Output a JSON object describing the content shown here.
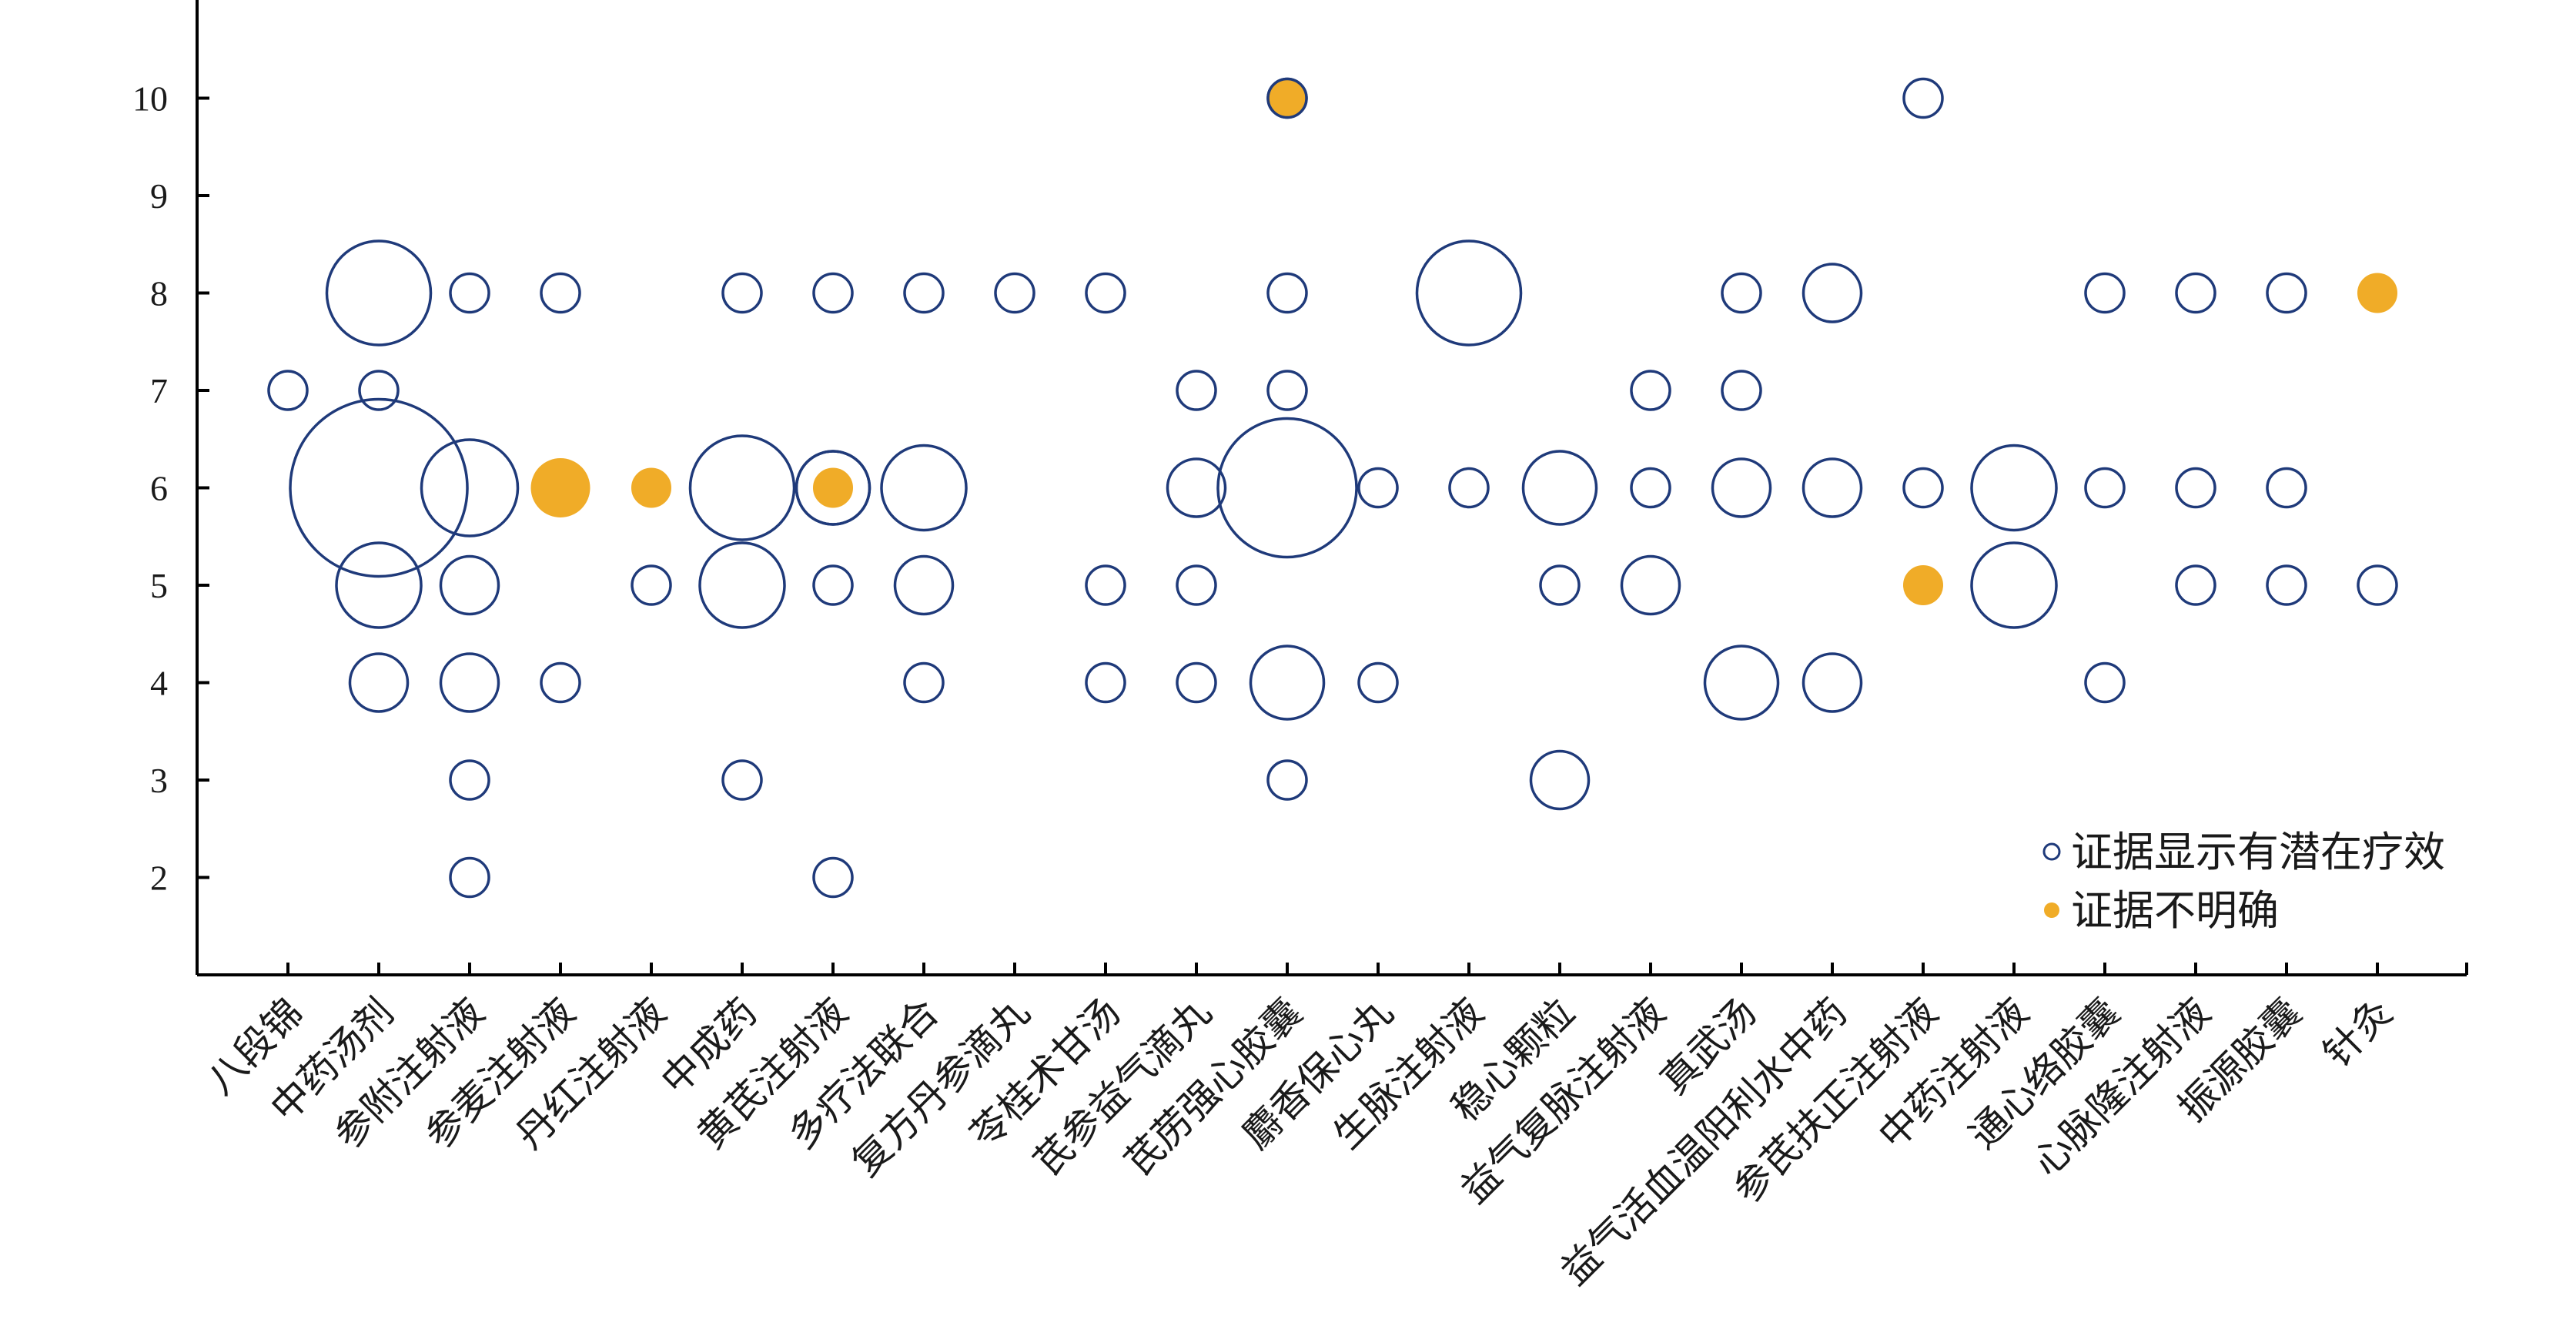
{
  "chart_data": {
    "type": "scatter",
    "title": "",
    "xlabel": "",
    "ylabel": "",
    "ylim": [
      1,
      11
    ],
    "yticks": [
      2,
      3,
      4,
      5,
      6,
      7,
      8,
      9,
      10
    ],
    "grid": false,
    "legend_position": "bottom-right",
    "categories": [
      "八段锦",
      "中药汤剂",
      "参附注射液",
      "参麦注射液",
      "丹红注射液",
      "中成药",
      "黄芪注射液",
      "多疗法联合",
      "复方丹参滴丸",
      "苓桂术甘汤",
      "芪参益气滴丸",
      "芪苈强心胶囊",
      "麝香保心丸",
      "生脉注射液",
      "稳心颗粒",
      "益气复脉注射液",
      "真武汤",
      "益气活血温阳利水中药",
      "参芪扶正注射液",
      "中药注射液",
      "通心络胶囊",
      "心脉隆注射液",
      "振源胶囊",
      "针灸"
    ],
    "series": [
      {
        "name": "证据显示有潜在疗效",
        "color": "#1f3a7a",
        "points": [
          {
            "x": "八段锦",
            "y": 7,
            "size": 1
          },
          {
            "x": "中药汤剂",
            "y": 8,
            "size": 2.7
          },
          {
            "x": "中药汤剂",
            "y": 7,
            "size": 1
          },
          {
            "x": "中药汤剂",
            "y": 6,
            "size": 4.6
          },
          {
            "x": "中药汤剂",
            "y": 5,
            "size": 2.2
          },
          {
            "x": "中药汤剂",
            "y": 4,
            "size": 1.5
          },
          {
            "x": "参附注射液",
            "y": 8,
            "size": 1
          },
          {
            "x": "参附注射液",
            "y": 6,
            "size": 2.5
          },
          {
            "x": "参附注射液",
            "y": 5,
            "size": 1.5
          },
          {
            "x": "参附注射液",
            "y": 4,
            "size": 1.5
          },
          {
            "x": "参附注射液",
            "y": 3,
            "size": 1
          },
          {
            "x": "参附注射液",
            "y": 2,
            "size": 1
          },
          {
            "x": "参麦注射液",
            "y": 8,
            "size": 1
          },
          {
            "x": "参麦注射液",
            "y": 4,
            "size": 1
          },
          {
            "x": "丹红注射液",
            "y": 5,
            "size": 1
          },
          {
            "x": "中成药",
            "y": 8,
            "size": 1
          },
          {
            "x": "中成药",
            "y": 6,
            "size": 2.7
          },
          {
            "x": "中成药",
            "y": 5,
            "size": 2.2
          },
          {
            "x": "中成药",
            "y": 3,
            "size": 1
          },
          {
            "x": "黄芪注射液",
            "y": 8,
            "size": 1
          },
          {
            "x": "黄芪注射液",
            "y": 6,
            "size": 1.9
          },
          {
            "x": "黄芪注射液",
            "y": 5,
            "size": 1
          },
          {
            "x": "黄芪注射液",
            "y": 2,
            "size": 1
          },
          {
            "x": "多疗法联合",
            "y": 8,
            "size": 1
          },
          {
            "x": "多疗法联合",
            "y": 6,
            "size": 2.2
          },
          {
            "x": "多疗法联合",
            "y": 5,
            "size": 1.5
          },
          {
            "x": "多疗法联合",
            "y": 4,
            "size": 1
          },
          {
            "x": "复方丹参滴丸",
            "y": 8,
            "size": 1
          },
          {
            "x": "苓桂术甘汤",
            "y": 8,
            "size": 1
          },
          {
            "x": "苓桂术甘汤",
            "y": 5,
            "size": 1
          },
          {
            "x": "苓桂术甘汤",
            "y": 4,
            "size": 1
          },
          {
            "x": "芪参益气滴丸",
            "y": 7,
            "size": 1
          },
          {
            "x": "芪参益气滴丸",
            "y": 6,
            "size": 1.5
          },
          {
            "x": "芪参益气滴丸",
            "y": 5,
            "size": 1
          },
          {
            "x": "芪参益气滴丸",
            "y": 4,
            "size": 1
          },
          {
            "x": "芪苈强心胶囊",
            "y": 10,
            "size": 1
          },
          {
            "x": "芪苈强心胶囊",
            "y": 8,
            "size": 1
          },
          {
            "x": "芪苈强心胶囊",
            "y": 7,
            "size": 1
          },
          {
            "x": "芪苈强心胶囊",
            "y": 6,
            "size": 3.6
          },
          {
            "x": "芪苈强心胶囊",
            "y": 4,
            "size": 1.9
          },
          {
            "x": "芪苈强心胶囊",
            "y": 3,
            "size": 1
          },
          {
            "x": "麝香保心丸",
            "y": 6,
            "size": 1
          },
          {
            "x": "麝香保心丸",
            "y": 4,
            "size": 1
          },
          {
            "x": "生脉注射液",
            "y": 8,
            "size": 2.7
          },
          {
            "x": "生脉注射液",
            "y": 6,
            "size": 1
          },
          {
            "x": "稳心颗粒",
            "y": 6,
            "size": 1.9
          },
          {
            "x": "稳心颗粒",
            "y": 5,
            "size": 1
          },
          {
            "x": "稳心颗粒",
            "y": 3,
            "size": 1.5
          },
          {
            "x": "益气复脉注射液",
            "y": 7,
            "size": 1
          },
          {
            "x": "益气复脉注射液",
            "y": 6,
            "size": 1
          },
          {
            "x": "益气复脉注射液",
            "y": 5,
            "size": 1.5
          },
          {
            "x": "真武汤",
            "y": 8,
            "size": 1
          },
          {
            "x": "真武汤",
            "y": 7,
            "size": 1
          },
          {
            "x": "真武汤",
            "y": 6,
            "size": 1.5
          },
          {
            "x": "真武汤",
            "y": 4,
            "size": 1.9
          },
          {
            "x": "益气活血温阳利水中药",
            "y": 8,
            "size": 1.5
          },
          {
            "x": "益气活血温阳利水中药",
            "y": 6,
            "size": 1.5
          },
          {
            "x": "益气活血温阳利水中药",
            "y": 4,
            "size": 1.5
          },
          {
            "x": "参芪扶正注射液",
            "y": 10,
            "size": 1
          },
          {
            "x": "参芪扶正注射液",
            "y": 6,
            "size": 1
          },
          {
            "x": "中药注射液",
            "y": 6,
            "size": 2.2
          },
          {
            "x": "中药注射液",
            "y": 5,
            "size": 2.2
          },
          {
            "x": "通心络胶囊",
            "y": 8,
            "size": 1
          },
          {
            "x": "通心络胶囊",
            "y": 6,
            "size": 1
          },
          {
            "x": "通心络胶囊",
            "y": 4,
            "size": 1
          },
          {
            "x": "心脉隆注射液",
            "y": 8,
            "size": 1
          },
          {
            "x": "心脉隆注射液",
            "y": 6,
            "size": 1
          },
          {
            "x": "心脉隆注射液",
            "y": 5,
            "size": 1
          },
          {
            "x": "振源胶囊",
            "y": 8,
            "size": 1
          },
          {
            "x": "振源胶囊",
            "y": 6,
            "size": 1
          },
          {
            "x": "振源胶囊",
            "y": 5,
            "size": 1
          },
          {
            "x": "针灸",
            "y": 5,
            "size": 1
          }
        ]
      },
      {
        "name": "证据不明确",
        "color": "#f0ac28",
        "points": [
          {
            "x": "参麦注射液",
            "y": 6,
            "size": 1.5
          },
          {
            "x": "丹红注射液",
            "y": 6,
            "size": 1
          },
          {
            "x": "黄芪注射液",
            "y": 6,
            "size": 1
          },
          {
            "x": "芪苈强心胶囊",
            "y": 10,
            "size": 1
          },
          {
            "x": "参芪扶正注射液",
            "y": 5,
            "size": 1
          },
          {
            "x": "针灸",
            "y": 8,
            "size": 1
          }
        ]
      }
    ]
  }
}
